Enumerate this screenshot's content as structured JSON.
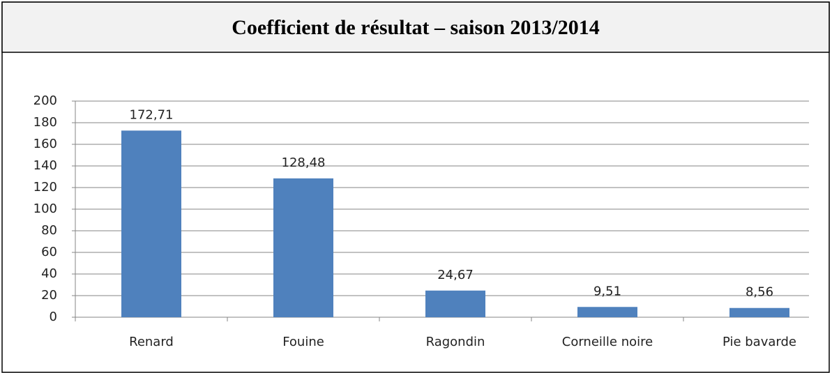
{
  "chart_data": {
    "type": "bar",
    "title": "Coefficient de résultat – saison 2013/2014",
    "categories": [
      "Renard",
      "Fouine",
      "Ragondin",
      "Corneille noire",
      "Pie bavarde"
    ],
    "values": [
      172.71,
      128.48,
      24.67,
      9.51,
      8.56
    ],
    "value_labels": [
      "172,71",
      "128,48",
      "24,67",
      "9,51",
      "8,56"
    ],
    "color": "#4f81bd",
    "ylim": [
      0,
      200
    ],
    "yticks": [
      0,
      20,
      40,
      60,
      80,
      100,
      120,
      140,
      160,
      180,
      200
    ],
    "grid": true
  }
}
